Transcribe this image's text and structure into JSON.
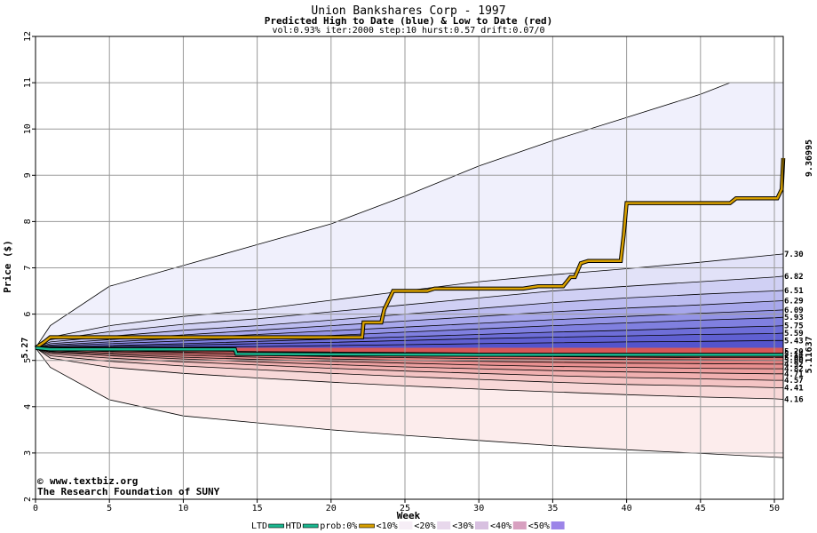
{
  "chart_data": {
    "type": "area",
    "title": "Union Bankshares Corp - 1997",
    "subtitle": "Predicted High to Date (blue) &  Low to Date (red)",
    "params": "vol:0.93% iter:2000 step:10 hurst:0.57 drift:0.07/0",
    "xlabel": "Week",
    "ylabel": "Price ($)",
    "xlim": [
      0,
      50.6
    ],
    "ylim": [
      2,
      12
    ],
    "x_ticks": [
      0,
      5,
      10,
      15,
      20,
      25,
      30,
      35,
      40,
      45,
      50
    ],
    "y_ticks": [
      2,
      3,
      4,
      5,
      6,
      7,
      8,
      9,
      10,
      11,
      12
    ],
    "grid": true,
    "start_value": "5.27",
    "end_marker_prob": "9.36995",
    "end_marker_ltd": "5.11637",
    "right_labels": [
      "7.30",
      "6.82",
      "6.51",
      "6.29",
      "6.09",
      "5.93",
      "5.75",
      "5.59",
      "5.43",
      "5.20",
      "5.14",
      "5.06",
      "5.00",
      "4.92",
      "4.82",
      "4.71",
      "4.57",
      "4.41",
      "4.16"
    ],
    "upper_bands": [
      {
        "x": [
          0,
          1,
          5,
          10,
          15,
          20,
          25,
          30,
          35,
          40,
          45,
          47,
          50.6
        ],
        "y": [
          5.27,
          5.75,
          6.6,
          7.05,
          7.5,
          7.95,
          8.55,
          9.2,
          9.75,
          10.25,
          10.75,
          11.0,
          11.0
        ]
      },
      {
        "x": [
          0,
          1,
          5,
          10,
          15,
          20,
          25,
          30,
          35,
          40,
          45,
          50,
          50.6
        ],
        "y": [
          5.27,
          5.5,
          5.75,
          5.95,
          6.1,
          6.3,
          6.5,
          6.7,
          6.85,
          6.98,
          7.12,
          7.28,
          7.3
        ]
      },
      {
        "x": [
          0,
          1,
          5,
          10,
          15,
          20,
          25,
          30,
          35,
          40,
          45,
          50,
          50.6
        ],
        "y": [
          5.27,
          5.45,
          5.62,
          5.78,
          5.9,
          6.05,
          6.2,
          6.35,
          6.5,
          6.6,
          6.7,
          6.8,
          6.82
        ]
      },
      {
        "x": [
          0,
          1,
          5,
          10,
          15,
          20,
          25,
          30,
          35,
          40,
          45,
          50,
          50.6
        ],
        "y": [
          5.27,
          5.4,
          5.52,
          5.65,
          5.75,
          5.87,
          6.0,
          6.12,
          6.25,
          6.35,
          6.43,
          6.5,
          6.51
        ]
      },
      {
        "x": [
          0,
          1,
          5,
          10,
          15,
          20,
          25,
          30,
          35,
          40,
          45,
          50,
          50.6
        ],
        "y": [
          5.27,
          5.36,
          5.45,
          5.55,
          5.65,
          5.75,
          5.85,
          5.95,
          6.05,
          6.13,
          6.2,
          6.28,
          6.29
        ]
      },
      {
        "x": [
          0,
          1,
          5,
          10,
          15,
          20,
          25,
          30,
          35,
          40,
          45,
          50,
          50.6
        ],
        "y": [
          5.27,
          5.33,
          5.4,
          5.48,
          5.56,
          5.64,
          5.72,
          5.8,
          5.88,
          5.95,
          6.02,
          6.08,
          6.09
        ]
      },
      {
        "x": [
          0,
          1,
          5,
          10,
          15,
          20,
          25,
          30,
          35,
          40,
          45,
          50,
          50.6
        ],
        "y": [
          5.27,
          5.31,
          5.36,
          5.42,
          5.48,
          5.54,
          5.61,
          5.68,
          5.75,
          5.81,
          5.87,
          5.92,
          5.93
        ]
      },
      {
        "x": [
          0,
          1,
          5,
          10,
          15,
          20,
          25,
          30,
          35,
          40,
          45,
          50,
          50.6
        ],
        "y": [
          5.27,
          5.29,
          5.32,
          5.36,
          5.41,
          5.46,
          5.51,
          5.56,
          5.61,
          5.65,
          5.7,
          5.74,
          5.75
        ]
      },
      {
        "x": [
          0,
          1,
          5,
          10,
          15,
          20,
          25,
          30,
          35,
          40,
          45,
          50,
          50.6
        ],
        "y": [
          5.27,
          5.28,
          5.3,
          5.33,
          5.36,
          5.39,
          5.43,
          5.47,
          5.5,
          5.53,
          5.56,
          5.58,
          5.59
        ]
      },
      {
        "x": [
          0,
          1,
          5,
          10,
          15,
          20,
          25,
          30,
          35,
          40,
          45,
          50,
          50.6
        ],
        "y": [
          5.27,
          5.27,
          5.28,
          5.29,
          5.3,
          5.32,
          5.34,
          5.36,
          5.38,
          5.4,
          5.41,
          5.43,
          5.43
        ]
      }
    ],
    "lower_bands": [
      {
        "x": [
          0,
          1,
          5,
          10,
          15,
          20,
          25,
          30,
          35,
          40,
          45,
          50,
          50.6
        ],
        "y": [
          5.27,
          4.85,
          4.15,
          3.8,
          3.65,
          3.5,
          3.38,
          3.27,
          3.16,
          3.07,
          2.99,
          2.91,
          2.9
        ]
      },
      {
        "x": [
          0,
          1,
          5,
          10,
          15,
          20,
          25,
          30,
          35,
          40,
          45,
          50,
          50.6
        ],
        "y": [
          5.27,
          5.05,
          4.85,
          4.72,
          4.62,
          4.53,
          4.45,
          4.38,
          4.32,
          4.26,
          4.21,
          4.17,
          4.16
        ]
      },
      {
        "x": [
          0,
          1,
          5,
          10,
          15,
          20,
          25,
          30,
          35,
          40,
          45,
          50,
          50.6
        ],
        "y": [
          5.27,
          5.1,
          4.98,
          4.88,
          4.8,
          4.72,
          4.65,
          4.59,
          4.53,
          4.48,
          4.45,
          4.41,
          4.41
        ]
      },
      {
        "x": [
          0,
          1,
          5,
          10,
          15,
          20,
          25,
          30,
          35,
          40,
          45,
          50,
          50.6
        ],
        "y": [
          5.27,
          5.14,
          5.05,
          4.97,
          4.9,
          4.83,
          4.77,
          4.72,
          4.67,
          4.63,
          4.6,
          4.57,
          4.57
        ]
      },
      {
        "x": [
          0,
          1,
          5,
          10,
          15,
          20,
          25,
          30,
          35,
          40,
          45,
          50,
          50.6
        ],
        "y": [
          5.27,
          5.17,
          5.1,
          5.03,
          4.97,
          4.91,
          4.86,
          4.82,
          4.78,
          4.75,
          4.73,
          4.71,
          4.71
        ]
      },
      {
        "x": [
          0,
          1,
          5,
          10,
          15,
          20,
          25,
          30,
          35,
          40,
          45,
          50,
          50.6
        ],
        "y": [
          5.27,
          5.19,
          5.13,
          5.07,
          5.02,
          4.98,
          4.94,
          4.9,
          4.87,
          4.85,
          4.83,
          4.82,
          4.82
        ]
      },
      {
        "x": [
          0,
          1,
          5,
          10,
          15,
          20,
          25,
          30,
          35,
          40,
          45,
          50,
          50.6
        ],
        "y": [
          5.27,
          5.21,
          5.16,
          5.11,
          5.07,
          5.03,
          5.0,
          4.98,
          4.96,
          4.94,
          4.93,
          4.92,
          4.92
        ]
      },
      {
        "x": [
          0,
          1,
          5,
          10,
          15,
          20,
          25,
          30,
          35,
          40,
          45,
          50,
          50.6
        ],
        "y": [
          5.27,
          5.23,
          5.19,
          5.15,
          5.11,
          5.08,
          5.06,
          5.04,
          5.03,
          5.02,
          5.01,
          5.0,
          5.0
        ]
      },
      {
        "x": [
          0,
          1,
          5,
          10,
          15,
          20,
          25,
          30,
          35,
          40,
          45,
          50,
          50.6
        ],
        "y": [
          5.27,
          5.24,
          5.21,
          5.18,
          5.15,
          5.13,
          5.11,
          5.09,
          5.08,
          5.07,
          5.06,
          5.06,
          5.06
        ]
      },
      {
        "x": [
          0,
          1,
          5,
          10,
          15,
          20,
          25,
          30,
          35,
          40,
          45,
          50,
          50.6
        ],
        "y": [
          5.27,
          5.25,
          5.23,
          5.21,
          5.19,
          5.18,
          5.17,
          5.16,
          5.15,
          5.15,
          5.14,
          5.14,
          5.14
        ]
      }
    ],
    "upper_fills": [
      "#f0f0fc",
      "#e2e2f8",
      "#d0d0f4",
      "#bcbcf0",
      "#a8a8ec",
      "#9494e6",
      "#8080e0",
      "#6e6ed8",
      "#6060d2",
      "#5454cc"
    ],
    "lower_fills": [
      "#fcecec",
      "#f8d8d8",
      "#f4c4c4",
      "#f0b0b0",
      "#eca0a0",
      "#e89090",
      "#e48080",
      "#e07070",
      "#dc6464",
      "#d85858"
    ],
    "series": [
      {
        "name": "prob:0%",
        "color": "#d8a000",
        "x": [
          0,
          0.6,
          1,
          10,
          22.1,
          22.2,
          23.4,
          23.6,
          24.2,
          26.5,
          27,
          33,
          34,
          35.7,
          36.2,
          36.5,
          36.9,
          37.4,
          39.6,
          39.8,
          40,
          47,
          47.4,
          50.2,
          50.5,
          50.6
        ],
        "y": [
          5.27,
          5.4,
          5.5,
          5.5,
          5.5,
          5.82,
          5.82,
          6.1,
          6.5,
          6.5,
          6.55,
          6.55,
          6.6,
          6.6,
          6.8,
          6.8,
          7.1,
          7.15,
          7.15,
          7.7,
          8.4,
          8.4,
          8.5,
          8.5,
          8.7,
          9.37
        ]
      },
      {
        "name": "LTD",
        "color": "#1ab890",
        "x": [
          0,
          1,
          5,
          10,
          13.5,
          13.6,
          20,
          30,
          40,
          50,
          50.6
        ],
        "y": [
          5.27,
          5.24,
          5.24,
          5.24,
          5.24,
          5.14,
          5.13,
          5.12,
          5.12,
          5.12,
          5.12
        ]
      }
    ],
    "legend": [
      {
        "label": "LTD",
        "color": "#1ab890"
      },
      {
        "label": "HTD",
        "color": "#1ab890"
      },
      {
        "label": "prob:0%",
        "color": "#d8a000"
      },
      {
        "label": "<10%",
        "color": "#f6eef6"
      },
      {
        "label": "<20%",
        "color": "#e8d8ec"
      },
      {
        "label": "<30%",
        "color": "#d8c0e0"
      },
      {
        "label": "<40%",
        "color": "#d8a0c0"
      },
      {
        "label": "<50%",
        "color": "#9c84e8"
      }
    ],
    "watermark_line1": "www.textbiz.org",
    "watermark_line2": "The Research Foundation of SUNY",
    "copyright_symbol": "©"
  }
}
